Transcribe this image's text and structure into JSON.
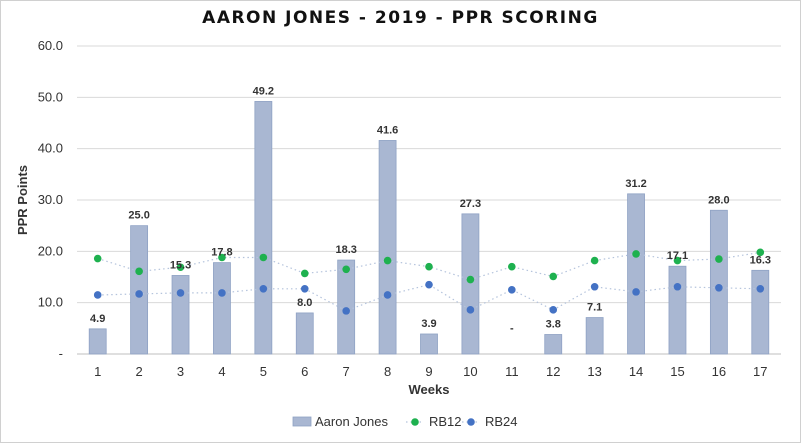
{
  "chart_data": {
    "type": "bar",
    "title": "AARON JONES - 2019 - PPR SCORING",
    "xlabel": "Weeks",
    "ylabel": "PPR Points",
    "ylim": [
      0,
      60
    ],
    "yticks": [
      "-",
      "10.0",
      "20.0",
      "30.0",
      "40.0",
      "50.0",
      "60.0"
    ],
    "categories": [
      "1",
      "2",
      "3",
      "4",
      "5",
      "6",
      "7",
      "8",
      "9",
      "10",
      "11",
      "12",
      "13",
      "14",
      "15",
      "16",
      "17"
    ],
    "grid": true,
    "legend_position": "bottom",
    "series": [
      {
        "name": "Aaron Jones",
        "kind": "bar",
        "color": "#a9b7d2",
        "values": [
          4.9,
          25.0,
          15.3,
          17.8,
          49.2,
          8.0,
          18.3,
          41.6,
          3.9,
          27.3,
          0,
          3.8,
          7.1,
          31.2,
          17.1,
          28.0,
          16.3
        ],
        "labels": [
          "4.9",
          "25.0",
          "15.3",
          "17.8",
          "49.2",
          "8.0",
          "18.3",
          "41.6",
          "3.9",
          "27.3",
          "-",
          "3.8",
          "7.1",
          "31.2",
          "17.1",
          "28.0",
          "16.3"
        ]
      },
      {
        "name": "RB12",
        "kind": "scatter",
        "color": "#1eb14f",
        "values": [
          18.6,
          16.1,
          16.9,
          18.8,
          18.8,
          15.7,
          16.5,
          18.2,
          17.0,
          14.5,
          17.0,
          15.1,
          18.2,
          19.5,
          18.2,
          18.5,
          19.8
        ]
      },
      {
        "name": "RB24",
        "kind": "scatter",
        "color": "#4472c4",
        "values": [
          11.5,
          11.7,
          11.9,
          11.9,
          12.7,
          12.7,
          8.4,
          11.5,
          13.5,
          8.6,
          12.5,
          8.6,
          13.1,
          12.1,
          13.1,
          12.9,
          12.7
        ]
      }
    ]
  },
  "colors": {
    "grid": "#d9d9d9",
    "axis": "#bfbfbf",
    "trend": "#b4c3dc"
  }
}
